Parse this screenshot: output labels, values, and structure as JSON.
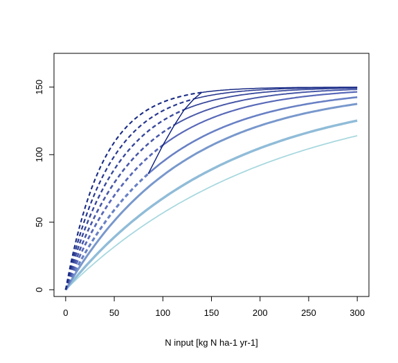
{
  "chart_data": {
    "type": "line",
    "title": "",
    "xlabel": "N input [kg N ha-1 yr-1]",
    "ylabel": "",
    "xlim": [
      -12,
      312
    ],
    "ylim": [
      -5,
      175
    ],
    "x_ticks": [
      0,
      50,
      100,
      150,
      200,
      250,
      300
    ],
    "y_ticks": [
      0,
      50,
      100,
      150
    ],
    "x_tick_labels": [
      "0",
      "50",
      "100",
      "150",
      "200",
      "250",
      "300"
    ],
    "y_tick_labels": [
      "0",
      "50",
      "100",
      "150"
    ],
    "grid": false,
    "legend": "none",
    "x_max": 300,
    "ymax": 150,
    "series": [
      {
        "k": 0.00476,
        "color": "#a8d8df",
        "width": 1.8,
        "threshold": null
      },
      {
        "k": 0.006,
        "color": "#90bcd8",
        "width": 3.5,
        "threshold": null
      },
      {
        "k": 0.0083,
        "color": "#7898cc",
        "width": 3.0,
        "threshold": null
      },
      {
        "k": 0.01,
        "color": "#6880c4",
        "width": 2.6,
        "threshold": 85
      },
      {
        "k": 0.0125,
        "color": "#5868b8",
        "width": 2.2,
        "threshold": 100
      },
      {
        "k": 0.015,
        "color": "#4858a8",
        "width": 2.0,
        "threshold": 112
      },
      {
        "k": 0.018,
        "color": "#38489c",
        "width": 1.8,
        "threshold": 122
      },
      {
        "k": 0.0215,
        "color": "#283890",
        "width": 1.6,
        "threshold": 132
      },
      {
        "k": 0.026,
        "color": "#182a84",
        "width": 1.5,
        "threshold": 140
      }
    ],
    "envelope_color": "#0a1a78"
  }
}
